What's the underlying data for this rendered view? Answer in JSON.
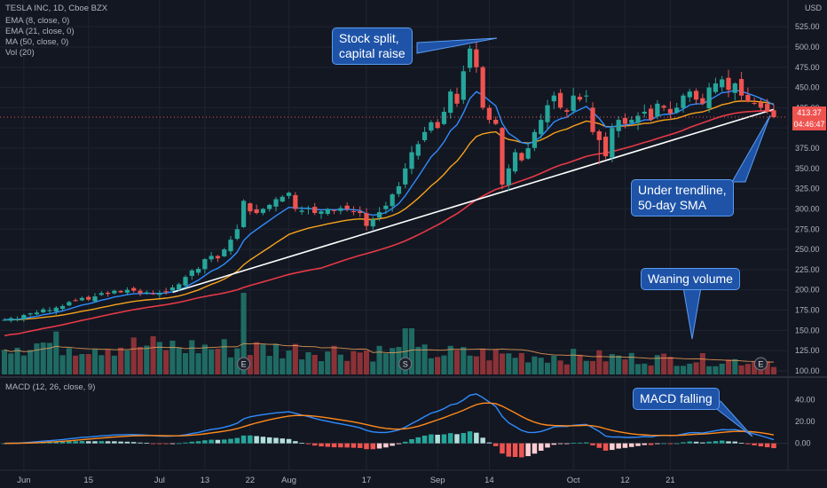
{
  "chart_data": [
    {
      "type": "candlestick",
      "title": "TESLA INC, 1D, Cboe BZX",
      "currency": "USD",
      "indicators": [
        "EMA (8, close, 0)",
        "EMA (21, close, 0)",
        "MA (50, close, 0)",
        "Vol (20)"
      ],
      "ylim": [
        100,
        535
      ],
      "yticks": [
        100,
        125,
        150,
        175,
        200,
        225,
        250,
        275,
        300,
        325,
        350,
        375,
        400,
        425,
        450,
        475,
        500,
        525
      ],
      "ytick_labels": [
        "100.00",
        "125.00",
        "150.00",
        "175.00",
        "200.00",
        "225.00",
        "250.00",
        "275.00",
        "300.00",
        "325.00",
        "350.00",
        "375.00",
        "400.00",
        "425.00",
        "450.00",
        "475.00",
        "500.00",
        "525.00"
      ],
      "xtick_labels": [
        {
          "label": "Jun",
          "day": 3
        },
        {
          "label": "15",
          "day": 13
        },
        {
          "label": "Jul",
          "day": 24
        },
        {
          "label": "13",
          "day": 31
        },
        {
          "label": "22",
          "day": 38
        },
        {
          "label": "Aug",
          "day": 44
        },
        {
          "label": "17",
          "day": 56
        },
        {
          "label": "Sep",
          "day": 67
        },
        {
          "label": "14",
          "day": 75
        },
        {
          "label": "Oct",
          "day": 88
        },
        {
          "label": "12",
          "day": 96
        },
        {
          "label": "21",
          "day": 103
        }
      ],
      "close": [
        163,
        165,
        164,
        169,
        171,
        172,
        176,
        175,
        178,
        180,
        185,
        187,
        190,
        188,
        192,
        196,
        195,
        199,
        197,
        200,
        199,
        196,
        197,
        195,
        196,
        198,
        203,
        207,
        216,
        224,
        226,
        238,
        242,
        239,
        250,
        262,
        275,
        310,
        297,
        295,
        300,
        305,
        312,
        315,
        320,
        300,
        298,
        301,
        295,
        297,
        300,
        298,
        301,
        300,
        297,
        295,
        279,
        287,
        296,
        304,
        318,
        328,
        350,
        370,
        380,
        395,
        407,
        400,
        420,
        445,
        430,
        470,
        498,
        475,
        425,
        410,
        405,
        330,
        350,
        370,
        360,
        375,
        395,
        410,
        428,
        440,
        425,
        420,
        440,
        435,
        440,
        395,
        385,
        365,
        400,
        410,
        405,
        410,
        415,
        420,
        410,
        430,
        425,
        418,
        425,
        440,
        445,
        435,
        430,
        450,
        455,
        460,
        447,
        455,
        440,
        433,
        430,
        425,
        420,
        413.37
      ],
      "trendline": {
        "from": {
          "day": 26,
          "price": 197
        },
        "to": {
          "day": 119,
          "price": 423
        }
      },
      "last_price": "413.37",
      "countdown": "04:46:47"
    },
    {
      "type": "bar",
      "name": "Vol (20)",
      "earnings_markers": [
        {
          "label": "E",
          "day": 37
        },
        {
          "label": "S",
          "day": 62
        },
        {
          "label": "E",
          "day": 117
        }
      ]
    },
    {
      "type": "line",
      "title": "MACD (12, 26, close, 9)",
      "ylim": [
        -10,
        50
      ],
      "yticks": [
        0,
        20,
        40
      ],
      "ytick_labels": [
        "0.00",
        "20.00",
        "40.00"
      ]
    }
  ],
  "annotations": [
    {
      "text": "Stock split,\ncapital raise"
    },
    {
      "text": "Under trendline,\n50-day SMA"
    },
    {
      "text": "Waning volume"
    },
    {
      "text": "MACD falling"
    }
  ],
  "colors": {
    "background": "#131722",
    "up": "#26a69a",
    "down": "#ef5350",
    "ema8": "#2f8cff",
    "ema21": "#f7a21b",
    "ma50": "#e63946",
    "trendline": "#ffffff",
    "grid": "#1f2430",
    "axis_text": "#b2b5be",
    "callout_bg": "#1e53a8",
    "macd": "#2f8cff",
    "signal": "#ff8a1c",
    "hist_up": "#26a69a",
    "hist_down": "#ef5350"
  }
}
